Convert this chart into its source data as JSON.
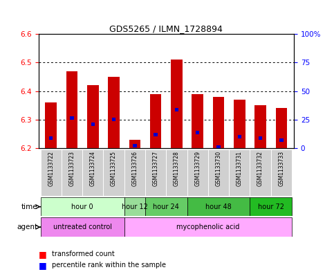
{
  "title": "GDS5265 / ILMN_1728894",
  "samples": [
    "GSM1133722",
    "GSM1133723",
    "GSM1133724",
    "GSM1133725",
    "GSM1133726",
    "GSM1133727",
    "GSM1133728",
    "GSM1133729",
    "GSM1133730",
    "GSM1133731",
    "GSM1133732",
    "GSM1133733"
  ],
  "bar_tops": [
    6.36,
    6.47,
    6.42,
    6.45,
    6.23,
    6.39,
    6.51,
    6.39,
    6.38,
    6.37,
    6.35,
    6.34
  ],
  "bar_bottom": 6.2,
  "percentile_values": [
    6.235,
    6.305,
    6.285,
    6.3,
    6.21,
    6.248,
    6.335,
    6.255,
    6.205,
    6.24,
    6.235,
    6.228
  ],
  "ylim": [
    6.2,
    6.6
  ],
  "grid_values": [
    6.3,
    6.4,
    6.5
  ],
  "bar_color": "#cc0000",
  "percentile_color": "#0000cc",
  "time_groups": [
    {
      "label": "hour 0",
      "start": 0,
      "end": 4,
      "color": "#ccffcc"
    },
    {
      "label": "hour 12",
      "start": 4,
      "end": 5,
      "color": "#99dd99"
    },
    {
      "label": "hour 24",
      "start": 5,
      "end": 7,
      "color": "#66cc66"
    },
    {
      "label": "hour 48",
      "start": 7,
      "end": 10,
      "color": "#44bb44"
    },
    {
      "label": "hour 72",
      "start": 10,
      "end": 12,
      "color": "#22bb22"
    }
  ],
  "agent_groups": [
    {
      "label": "untreated control",
      "start": 0,
      "end": 4,
      "color": "#ee88ee"
    },
    {
      "label": "mycophenolic acid",
      "start": 4,
      "end": 12,
      "color": "#ffaaff"
    }
  ],
  "bar_width": 0.55
}
